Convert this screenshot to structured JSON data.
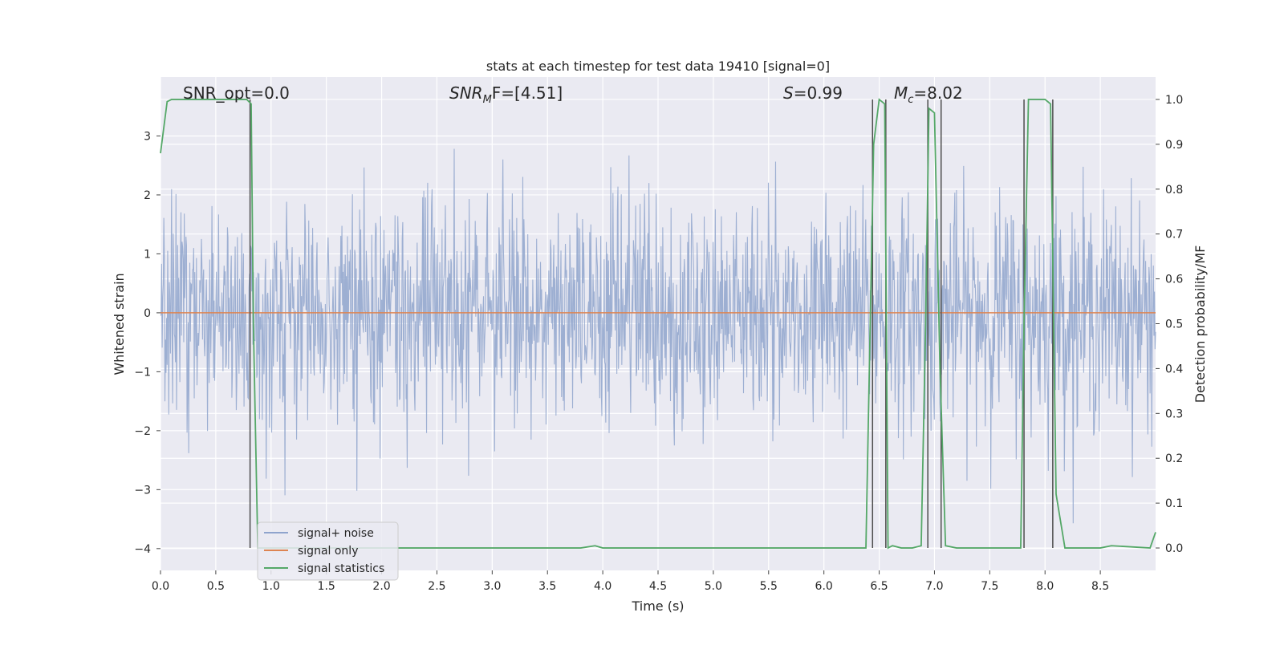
{
  "chart_data": {
    "type": "line",
    "title": "stats at each timestep for test data 19410 [signal=0]",
    "xlabel": "Time (s)",
    "ylabel_left": "Whitened strain",
    "ylabel_right": "Detection probability/MF",
    "xlim": [
      0,
      9.0
    ],
    "ylim_left": [
      -4.37,
      4.0
    ],
    "ylim_right": [
      -0.05,
      1.05
    ],
    "x_ticks": [
      "0.0",
      "0.5",
      "1.0",
      "1.5",
      "2.0",
      "2.5",
      "3.0",
      "3.5",
      "4.0",
      "4.5",
      "5.0",
      "5.5",
      "6.0",
      "6.5",
      "7.0",
      "7.5",
      "8.0",
      "8.5"
    ],
    "x_tick_values": [
      0,
      0.5,
      1.0,
      1.5,
      2.0,
      2.5,
      3.0,
      3.5,
      4.0,
      4.5,
      5.0,
      5.5,
      6.0,
      6.5,
      7.0,
      7.5,
      8.0,
      8.5
    ],
    "y_left_ticks": [
      "−4",
      "−3",
      "−2",
      "−1",
      "0",
      "1",
      "2",
      "3"
    ],
    "y_left_tick_values": [
      -4,
      -3,
      -2,
      -1,
      0,
      1,
      2,
      3
    ],
    "y_right_ticks": [
      "0.0",
      "0.1",
      "0.2",
      "0.3",
      "0.4",
      "0.5",
      "0.6",
      "0.7",
      "0.8",
      "0.9",
      "1.0"
    ],
    "y_right_tick_values": [
      0,
      0.1,
      0.2,
      0.3,
      0.4,
      0.5,
      0.6,
      0.7,
      0.8,
      0.9,
      1.0
    ],
    "grid": true,
    "legend_position": "bottom-left",
    "annotations": {
      "snr_opt": "SNR_opt=0.0",
      "snr_mf_prefix": "SNR",
      "snr_mf_sub": "M",
      "snr_mf_suffix": "F=[4.51]",
      "s_symbol": "S",
      "s_value": "=0.99",
      "mc_symbol": "M",
      "mc_sub": "c",
      "mc_value": "=8.02"
    },
    "series": [
      {
        "name": "signal+ noise",
        "color": "#8fa4cd",
        "axis": "left",
        "description_values": "noise, roughly symmetric about 0, typical range ±1.7, occasional spikes to ±3.6"
      },
      {
        "name": "signal only",
        "color": "#dd8452",
        "axis": "left",
        "x": [
          0,
          9.0
        ],
        "y": [
          0,
          0
        ]
      },
      {
        "name": "signal statistics",
        "color": "#55a868",
        "axis": "right",
        "x": [
          0,
          0.06,
          0.1,
          0.2,
          0.5,
          0.78,
          0.82,
          0.84,
          0.88,
          0.9,
          1.0,
          2.0,
          3.0,
          3.8,
          3.93,
          4.0,
          5.0,
          6.0,
          6.38,
          6.45,
          6.5,
          6.55,
          6.58,
          6.62,
          6.7,
          6.8,
          6.88,
          6.92,
          6.95,
          7.0,
          7.05,
          7.1,
          7.2,
          7.5,
          7.78,
          7.81,
          7.85,
          8.0,
          8.05,
          8.1,
          8.18,
          8.25,
          8.5,
          8.6,
          8.95,
          9.0
        ],
        "y": [
          0.88,
          0.995,
          1.0,
          1.0,
          1.0,
          1.0,
          0.99,
          0.5,
          0.0,
          0.0,
          0.0,
          0.0,
          0.0,
          0.0,
          0.005,
          0.0,
          0.0,
          0.0,
          0.0,
          0.9,
          1.0,
          0.99,
          0.0,
          0.005,
          0.0,
          0.0,
          0.005,
          0.5,
          0.98,
          0.97,
          0.4,
          0.005,
          0.0,
          0.0,
          0.0,
          0.5,
          1.0,
          1.0,
          0.99,
          0.12,
          0.0,
          0.0,
          0.0,
          0.005,
          0.0,
          0.035
        ]
      }
    ],
    "vertical_markers": [
      0.81,
      6.44,
      6.56,
      6.94,
      7.06,
      7.81,
      8.07
    ],
    "marker_color": "#4d4d4d"
  }
}
